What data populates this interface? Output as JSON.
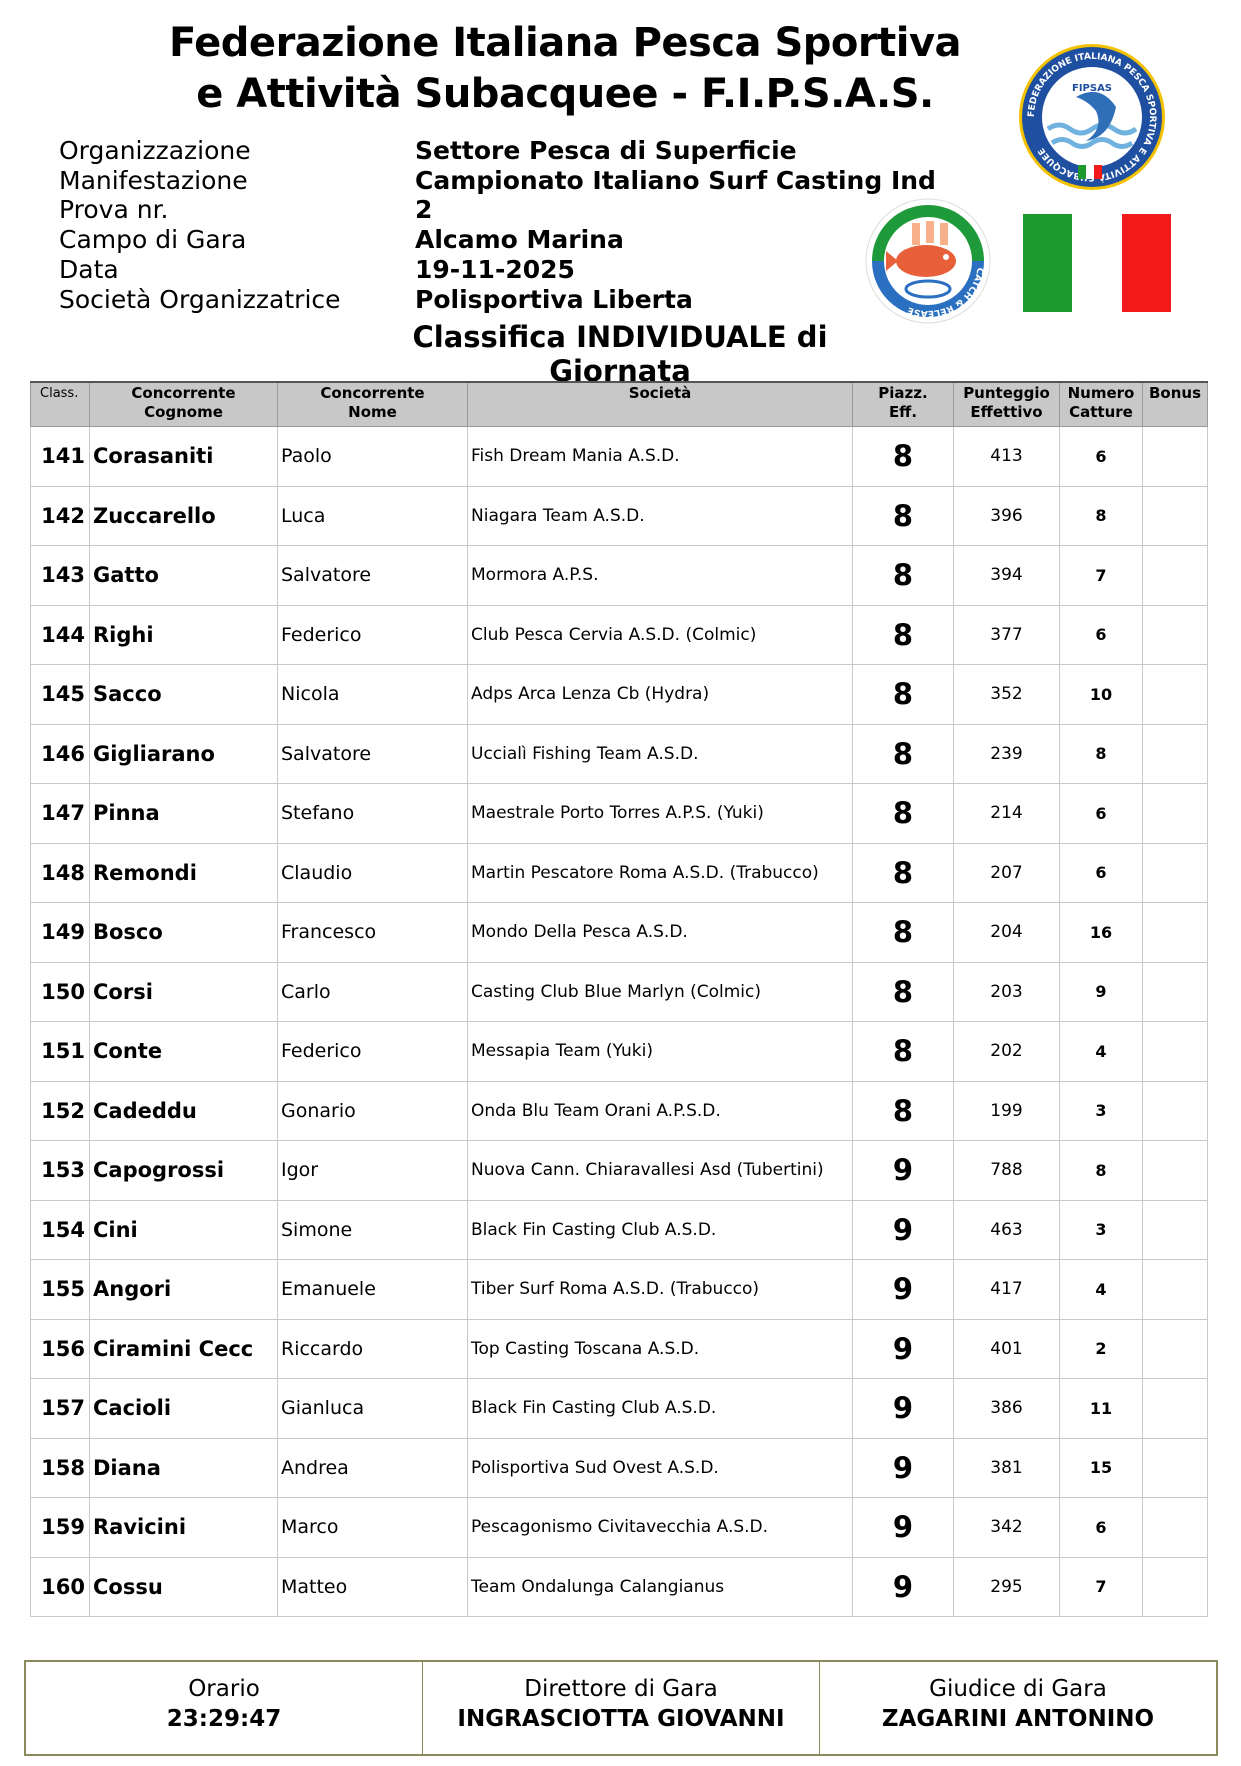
{
  "header": {
    "title_line1": "Federazione Italiana Pesca Sportiva",
    "title_line2": "e Attività Subacquee - F.I.P.S.A.S.",
    "subtitle": "Classifica INDIVIDUALE di Giornata",
    "info": [
      {
        "label": "Organizzazione",
        "value": "Settore Pesca di Superficie"
      },
      {
        "label": "Manifestazione",
        "value": "Campionato Italiano Surf Casting Ind"
      },
      {
        "label": "Prova nr.",
        "value": "2"
      },
      {
        "label": "Campo di Gara",
        "value": "Alcamo Marina"
      },
      {
        "label": "Data",
        "value": "19-11-2025"
      },
      {
        "label": "Società Organizzatrice",
        "value": "Polisportiva Liberta"
      }
    ],
    "logos": {
      "fipsas_seal_text": "FEDERAZIONE ITALIANA PESCA SPORTIVA E ATTIVITÀ SUBACQUEE",
      "fipsas_inner": "FIPSAS",
      "catch_release_text": "CATCH & RELEASE",
      "flag_colors": [
        "#1d9a2e",
        "#ffffff",
        "#f21a1a"
      ]
    }
  },
  "table": {
    "columns": [
      {
        "line1": "Class.",
        "line2": ""
      },
      {
        "line1": "Concorrente",
        "line2": "Cognome"
      },
      {
        "line1": "Concorrente",
        "line2": "Nome"
      },
      {
        "line1": "Società",
        "line2": ""
      },
      {
        "line1": "Piazz.",
        "line2": "Eff."
      },
      {
        "line1": "Punteggio",
        "line2": "Effettivo"
      },
      {
        "line1": "Numero",
        "line2": "Catture"
      },
      {
        "line1": "Bonus",
        "line2": ""
      }
    ],
    "rows": [
      {
        "class": "141",
        "cognome": "Corasaniti",
        "nome": "Paolo",
        "societa": "Fish Dream Mania A.S.D.",
        "piazz": "8",
        "punteggio": "413",
        "catture": "6",
        "bonus": ""
      },
      {
        "class": "142",
        "cognome": "Zuccarello",
        "nome": "Luca",
        "societa": "Niagara Team A.S.D.",
        "piazz": "8",
        "punteggio": "396",
        "catture": "8",
        "bonus": ""
      },
      {
        "class": "143",
        "cognome": "Gatto",
        "nome": "Salvatore",
        "societa": "Mormora A.P.S.",
        "piazz": "8",
        "punteggio": "394",
        "catture": "7",
        "bonus": ""
      },
      {
        "class": "144",
        "cognome": "Righi",
        "nome": "Federico",
        "societa": "Club Pesca Cervia A.S.D. (Colmic)",
        "piazz": "8",
        "punteggio": "377",
        "catture": "6",
        "bonus": ""
      },
      {
        "class": "145",
        "cognome": "Sacco",
        "nome": "Nicola",
        "societa": "Adps Arca Lenza Cb (Hydra)",
        "piazz": "8",
        "punteggio": "352",
        "catture": "10",
        "bonus": ""
      },
      {
        "class": "146",
        "cognome": "Gigliarano",
        "nome": "Salvatore",
        "societa": "Uccialì Fishing Team A.S.D.",
        "piazz": "8",
        "punteggio": "239",
        "catture": "8",
        "bonus": ""
      },
      {
        "class": "147",
        "cognome": "Pinna",
        "nome": "Stefano",
        "societa": "Maestrale Porto Torres A.P.S. (Yuki)",
        "piazz": "8",
        "punteggio": "214",
        "catture": "6",
        "bonus": ""
      },
      {
        "class": "148",
        "cognome": "Remondi",
        "nome": "Claudio",
        "societa": "Martin Pescatore Roma A.S.D. (Trabucco)",
        "piazz": "8",
        "punteggio": "207",
        "catture": "6",
        "bonus": ""
      },
      {
        "class": "149",
        "cognome": "Bosco",
        "nome": "Francesco",
        "societa": "Mondo Della Pesca A.S.D.",
        "piazz": "8",
        "punteggio": "204",
        "catture": "16",
        "bonus": ""
      },
      {
        "class": "150",
        "cognome": "Corsi",
        "nome": "Carlo",
        "societa": "Casting Club  Blue Marlyn (Colmic)",
        "piazz": "8",
        "punteggio": "203",
        "catture": "9",
        "bonus": ""
      },
      {
        "class": "151",
        "cognome": "Conte",
        "nome": "Federico",
        "societa": "Messapia Team (Yuki)",
        "piazz": "8",
        "punteggio": "202",
        "catture": "4",
        "bonus": ""
      },
      {
        "class": "152",
        "cognome": "Cadeddu",
        "nome": "Gonario",
        "societa": "Onda Blu Team Orani A.P.S.D.",
        "piazz": "8",
        "punteggio": "199",
        "catture": "3",
        "bonus": ""
      },
      {
        "class": "153",
        "cognome": "Capogrossi",
        "nome": "Igor",
        "societa": "Nuova Cann. Chiaravallesi Asd (Tubertini)",
        "piazz": "9",
        "punteggio": "788",
        "catture": "8",
        "bonus": ""
      },
      {
        "class": "154",
        "cognome": "Cini",
        "nome": "Simone",
        "societa": "Black Fin Casting Club A.S.D.",
        "piazz": "9",
        "punteggio": "463",
        "catture": "3",
        "bonus": ""
      },
      {
        "class": "155",
        "cognome": "Angori",
        "nome": "Emanuele",
        "societa": "Tiber Surf Roma A.S.D. (Trabucco)",
        "piazz": "9",
        "punteggio": "417",
        "catture": "4",
        "bonus": ""
      },
      {
        "class": "156",
        "cognome": "Ciramini Cecc",
        "nome": "Riccardo",
        "societa": "Top Casting Toscana A.S.D.",
        "piazz": "9",
        "punteggio": "401",
        "catture": "2",
        "bonus": ""
      },
      {
        "class": "157",
        "cognome": "Cacioli",
        "nome": "Gianluca",
        "societa": "Black Fin Casting Club A.S.D.",
        "piazz": "9",
        "punteggio": "386",
        "catture": "11",
        "bonus": ""
      },
      {
        "class": "158",
        "cognome": "Diana",
        "nome": "Andrea",
        "societa": "Polisportiva Sud Ovest A.S.D.",
        "piazz": "9",
        "punteggio": "381",
        "catture": "15",
        "bonus": ""
      },
      {
        "class": "159",
        "cognome": "Ravicini",
        "nome": "Marco",
        "societa": "Pescagonismo Civitavecchia A.S.D.",
        "piazz": "9",
        "punteggio": "342",
        "catture": "6",
        "bonus": ""
      },
      {
        "class": "160",
        "cognome": "Cossu",
        "nome": "Matteo",
        "societa": "Team Ondalunga Calangianus",
        "piazz": "9",
        "punteggio": "295",
        "catture": "7",
        "bonus": ""
      }
    ]
  },
  "footer": {
    "orario_label": "Orario",
    "orario_value": "23:29:47",
    "direttore_label": "Direttore di Gara",
    "direttore_value": "INGRASCIOTTA GIOVANNI",
    "giudice_label": "Giudice di Gara",
    "giudice_value": "ZAGARINI ANTONINO"
  }
}
